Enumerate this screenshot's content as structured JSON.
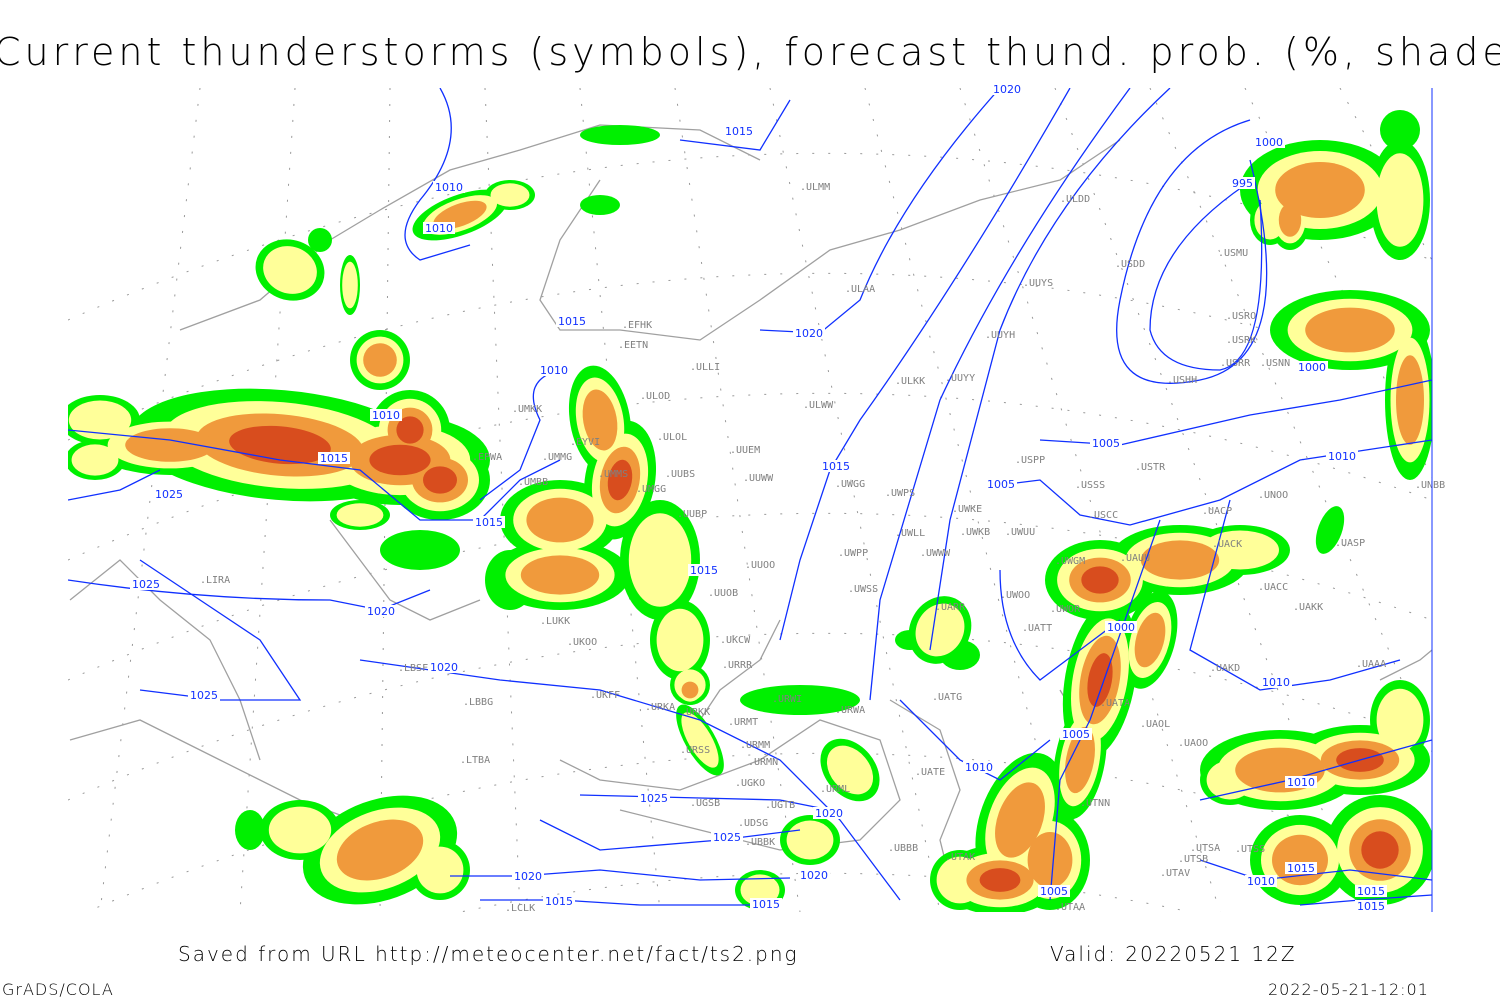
{
  "title": "Current thunderstorms (symbols), forecast thund. prob. (%, shaded)",
  "footer": {
    "source": "Saved from URL http://meteocenter.net/fact/ts2.png",
    "valid": "Valid: 20220521 12Z",
    "software": "GrADS/COLA",
    "timestamp": "2022-05-21-12:01"
  },
  "colors": {
    "prob_low": "#00f000",
    "prob_mid": "#ffff99",
    "prob_high": "#f09a3c",
    "prob_max": "#d84d1e",
    "isobar": "#1030ff",
    "coast": "#a0a0a0",
    "station": "#808080"
  },
  "stations": [
    "ULMM",
    "ULDD",
    "USDD",
    "USMU",
    "ULAA",
    "UUYS",
    "EFHK",
    "EETN",
    "USRO",
    "USRK",
    "USNN",
    "USRR",
    "USHH",
    "ULLI",
    "UUYH",
    "ULOD",
    "ULWW",
    "ULKK",
    "UUYY",
    "UMKK",
    "ULOL",
    "EYVI",
    "UUEM",
    "UMMG",
    "EPWA",
    "UMMS",
    "UUBS",
    "UUWW",
    "UMBB",
    "UMGG",
    "UUBP",
    "UWGG",
    "UWPS",
    "USPP",
    "USTR",
    "USSS",
    "UNOO",
    "UNBB",
    "USCC",
    "UACP",
    "UWKE",
    "UWKB",
    "UWUU",
    "UWLL",
    "UWWW",
    "UWPP",
    "UUOO",
    "UUOB",
    "UWSS",
    "UWGM",
    "UAUU",
    "UACK",
    "UASP",
    "UACC",
    "UAKK",
    "UARR",
    "UWOO",
    "UWOR",
    "UATT",
    "LIRA",
    "LUKK",
    "UKOO",
    "UKCW",
    "URRR",
    "UAKD",
    "UAAA",
    "LBSF",
    "LBBG",
    "UKFF",
    "URKA",
    "URKK",
    "URMT",
    "URWI",
    "URWA",
    "UATG",
    "UATE",
    "UATA",
    "UAOL",
    "UAOO",
    "URMM",
    "URSS",
    "LTBA",
    "URMN",
    "URML",
    "UGKO",
    "UGSB",
    "UGTB",
    "UDSG",
    "UBBK",
    "UBBB",
    "UTNN",
    "UTAK",
    "UTSA",
    "UTSB",
    "UTAA",
    "LCLK",
    "UTAV",
    "UTSS"
  ],
  "isobar_labels": [
    "1015",
    "1010",
    "1010",
    "1015",
    "1020",
    "1010",
    "1010",
    "1015",
    "1025",
    "1015",
    "1015",
    "1005",
    "1005",
    "1010",
    "1000",
    "995",
    "1000",
    "1025",
    "1020",
    "1015",
    "1020",
    "1000",
    "1025",
    "1010",
    "1005",
    "1010",
    "1025",
    "1020",
    "1025",
    "1020",
    "1020",
    "1015",
    "1015",
    "1005",
    "1010",
    "1015",
    "1010",
    "1015",
    "1015",
    "1020"
  ]
}
